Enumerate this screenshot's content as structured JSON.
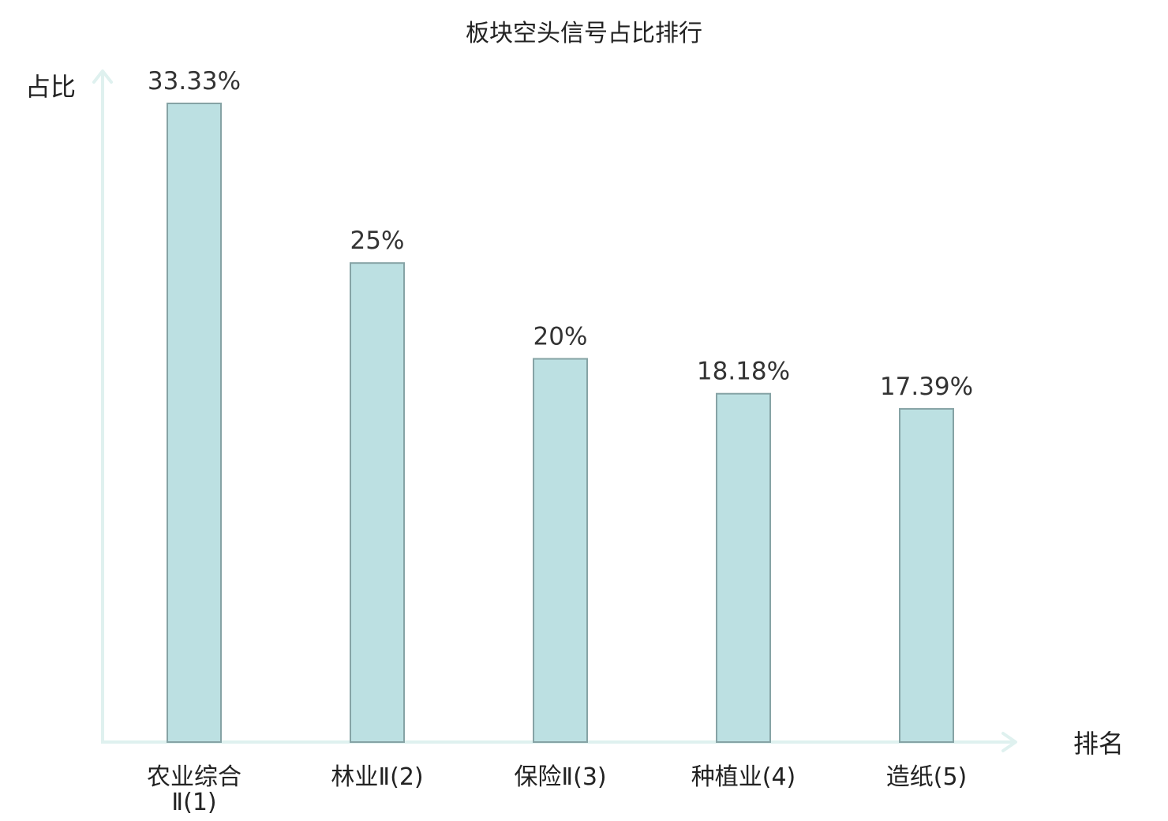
{
  "chart_data": {
    "type": "bar",
    "title": "板块空头信号占比排行",
    "xlabel": "排名",
    "ylabel": "占比",
    "categories": [
      {
        "name": "农业综合Ⅱ",
        "rank": "(1)",
        "highlight": true
      },
      {
        "name": "林业Ⅱ",
        "rank": "(2)",
        "highlight": false
      },
      {
        "name": "保险Ⅱ",
        "rank": "(3)",
        "highlight": false
      },
      {
        "name": "种植业",
        "rank": "(4)",
        "highlight": false
      },
      {
        "name": "造纸",
        "rank": "(5)",
        "highlight": false
      }
    ],
    "values": [
      33.33,
      25,
      20,
      18.18,
      17.39
    ],
    "value_labels": [
      "33.33%",
      "25%",
      "20%",
      "18.18%",
      "17.39%"
    ],
    "unit": "%",
    "grid": false,
    "legend": "none",
    "colors": {
      "bar_fill": "#bce0e2",
      "bar_stroke": "#86a3a5",
      "axis": "#dff1ef",
      "highlight_label": "#e0191b",
      "label": "#222222",
      "value_label": "#333333"
    }
  }
}
